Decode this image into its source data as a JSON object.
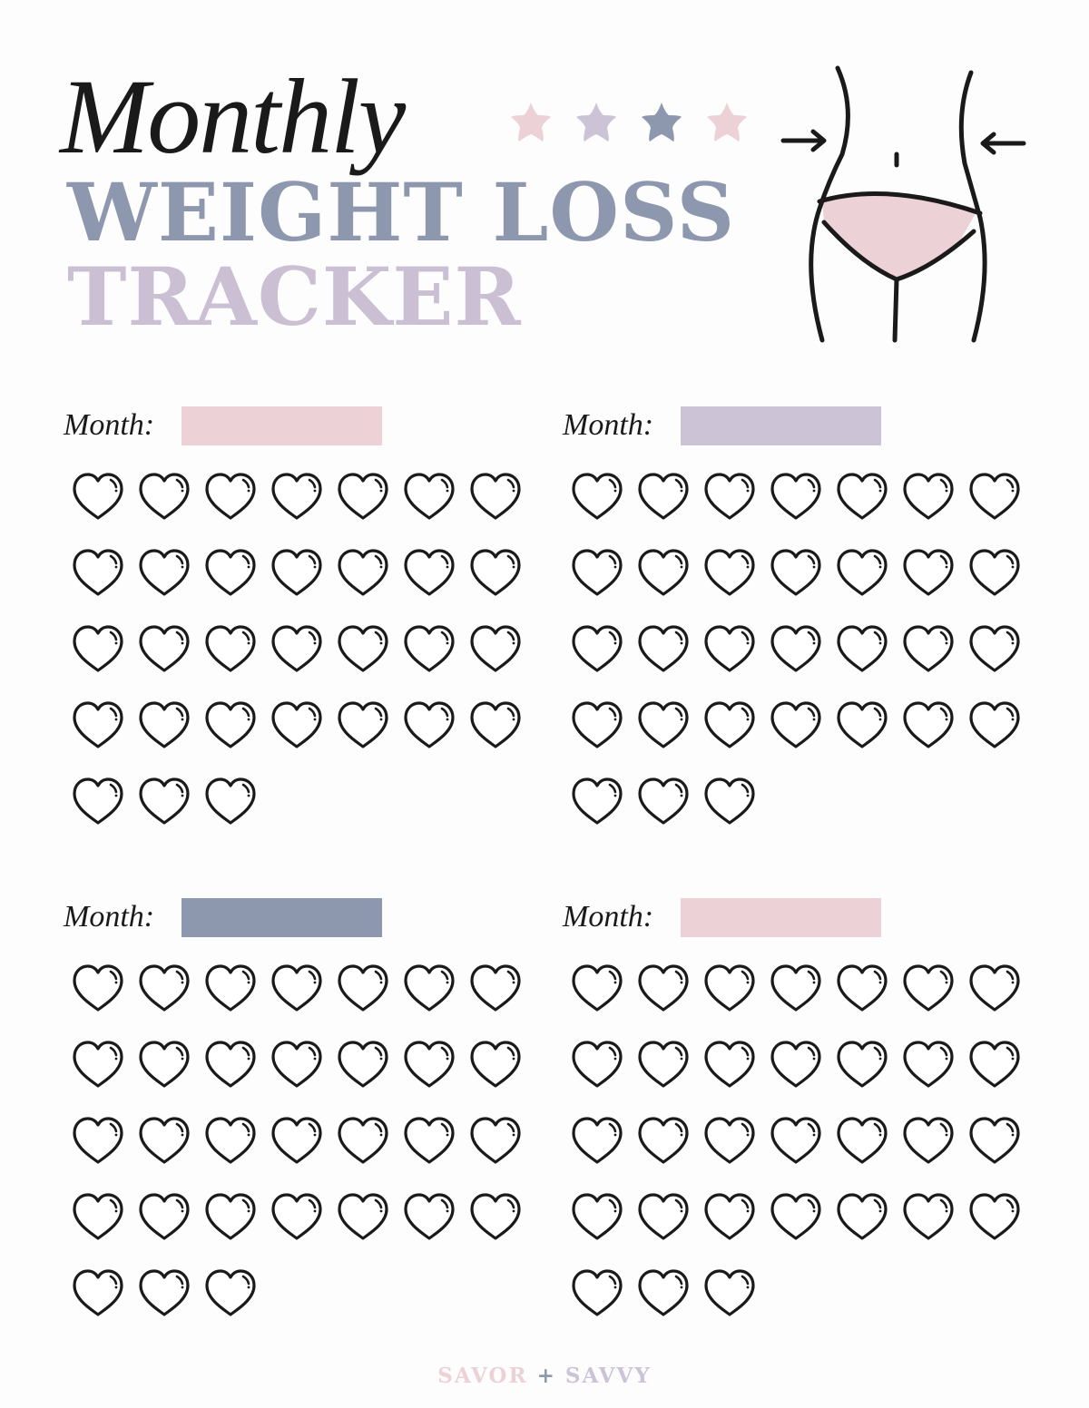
{
  "title": {
    "monthly": "Monthly",
    "weight_loss": "WEIGHT LOSS",
    "tracker": "TRACKER"
  },
  "colors": {
    "pink": "#ecd1d7",
    "lavender": "#cdc3d6",
    "slate": "#8d97ae",
    "ink": "#1a1a1a"
  },
  "star_colors": [
    "#ecd1d7",
    "#cdc3d6",
    "#8d97ae",
    "#ecd1d7"
  ],
  "illustration": "waist-measure-icon",
  "blocks": [
    {
      "month_label": "Month:",
      "field_color": "#ecd1d7",
      "days": 31
    },
    {
      "month_label": "Month:",
      "field_color": "#cdc3d6",
      "days": 31
    },
    {
      "month_label": "Month:",
      "field_color": "#8d97ae",
      "days": 31
    },
    {
      "month_label": "Month:",
      "field_color": "#ecd1d7",
      "days": 31
    }
  ],
  "footer": {
    "left": "SAVOR",
    "plus": "+",
    "right": "SAVVY"
  }
}
